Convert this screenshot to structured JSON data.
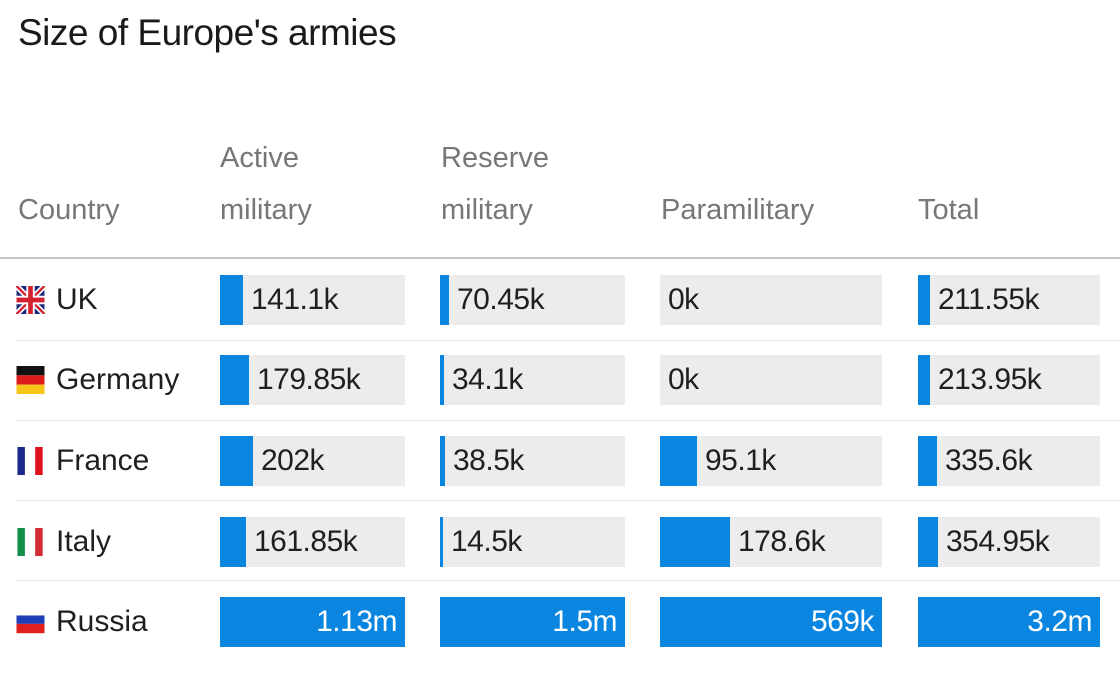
{
  "title": "Size of Europe's armies",
  "colors": {
    "bar": "#0a86e0",
    "track": "#ececec"
  },
  "columns": [
    {
      "key": "country",
      "label_line1": "",
      "label_line2": "Country"
    },
    {
      "key": "active",
      "label_line1": "Active",
      "label_line2": "military"
    },
    {
      "key": "reserve",
      "label_line1": "Reserve",
      "label_line2": "military"
    },
    {
      "key": "paramilitary",
      "label_line1": "",
      "label_line2": "Paramilitary"
    },
    {
      "key": "total",
      "label_line1": "",
      "label_line2": "Total"
    }
  ],
  "rows": [
    {
      "country": "UK",
      "flag": "uk-flag-icon",
      "active": "141.1k",
      "reserve": "70.45k",
      "paramilitary": "0k",
      "total": "211.55k"
    },
    {
      "country": "Germany",
      "flag": "germany-flag-icon",
      "active": "179.85k",
      "reserve": "34.1k",
      "paramilitary": "0k",
      "total": "213.95k"
    },
    {
      "country": "France",
      "flag": "france-flag-icon",
      "active": "202k",
      "reserve": "38.5k",
      "paramilitary": "95.1k",
      "total": "335.6k"
    },
    {
      "country": "Italy",
      "flag": "italy-flag-icon",
      "active": "161.85k",
      "reserve": "14.5k",
      "paramilitary": "178.6k",
      "total": "354.95k"
    },
    {
      "country": "Russia",
      "flag": "russia-flag-icon",
      "active": "1.13m",
      "reserve": "1.5m",
      "paramilitary": "569k",
      "total": "3.2m"
    }
  ],
  "chart_data": {
    "type": "table",
    "title": "Size of Europe's armies",
    "columns": [
      "Country",
      "Active military",
      "Reserve military",
      "Paramilitary",
      "Total"
    ],
    "categories": [
      "UK",
      "Germany",
      "France",
      "Italy",
      "Russia"
    ],
    "series": [
      {
        "name": "Active military",
        "values": [
          141100,
          179850,
          202000,
          161850,
          1130000
        ],
        "max": 1130000
      },
      {
        "name": "Reserve military",
        "values": [
          70450,
          34100,
          38500,
          14500,
          1500000
        ],
        "max": 1500000
      },
      {
        "name": "Paramilitary",
        "values": [
          0,
          0,
          95100,
          178600,
          569000
        ],
        "max": 569000
      },
      {
        "name": "Total",
        "values": [
          211550,
          213950,
          335600,
          354950,
          3200000
        ],
        "max": 3200000
      }
    ]
  }
}
